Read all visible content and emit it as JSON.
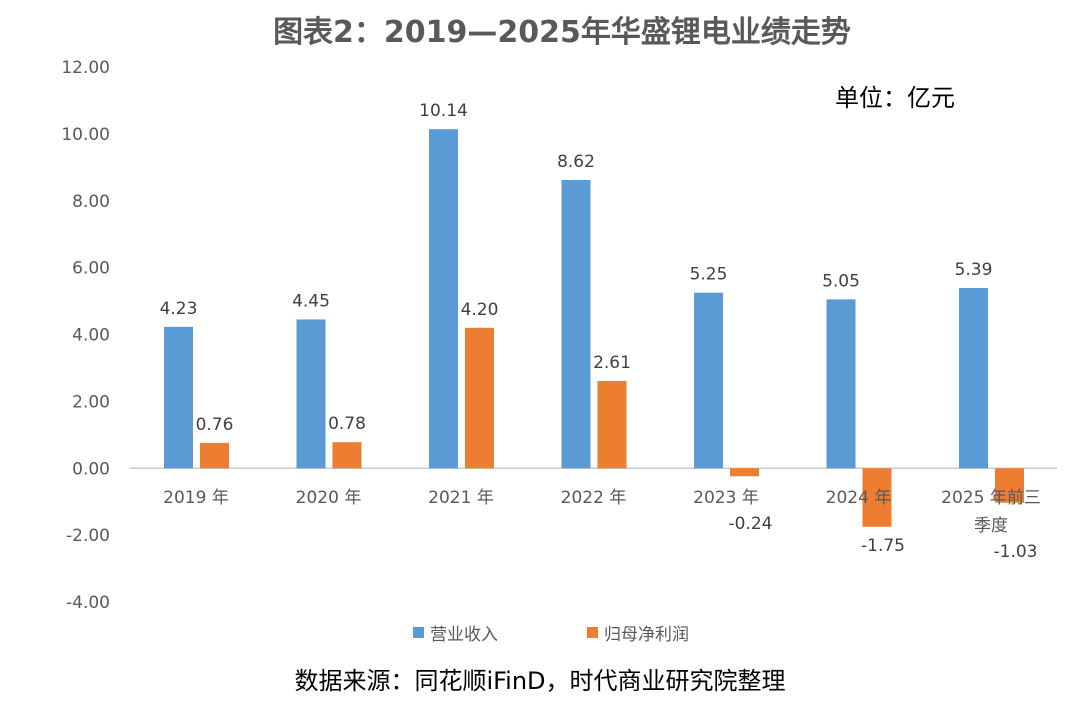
{
  "chart_data": {
    "type": "bar",
    "title": "图表2：2019—2025年华盛锂电业绩走势",
    "unit_label": "单位：亿元",
    "source": "数据来源：同花顺iFinD，时代商业研究院整理",
    "categories": [
      "2019 年",
      "2020 年",
      "2021 年",
      "2022 年",
      "2023 年",
      "2024 年",
      "2025 年前三季度"
    ],
    "category_lines": [
      [
        "2019 年"
      ],
      [
        "2020 年"
      ],
      [
        "2021 年"
      ],
      [
        "2022 年"
      ],
      [
        "2023 年"
      ],
      [
        "2024 年"
      ],
      [
        "2025 年前三",
        "季度"
      ]
    ],
    "series": [
      {
        "name": "营业收入",
        "color": "#5B9BD5",
        "values": [
          4.23,
          4.45,
          10.14,
          8.62,
          5.25,
          5.05,
          5.39
        ],
        "labels": [
          "4.23",
          "4.45",
          "10.14",
          "8.62",
          "5.25",
          "5.05",
          "5.39"
        ]
      },
      {
        "name": "归母净利润",
        "color": "#ED7D31",
        "values": [
          0.76,
          0.78,
          4.2,
          2.61,
          -0.24,
          -1.75,
          -1.03
        ],
        "labels": [
          "0.76",
          "0.78",
          "4.20",
          "2.61",
          "-0.24",
          "-1.75",
          "-1.03"
        ]
      }
    ],
    "ylim": [
      -4,
      12
    ],
    "yticks": [
      "-4.00",
      "-2.00",
      "0.00",
      "2.00",
      "4.00",
      "6.00",
      "8.00",
      "10.00",
      "12.00"
    ],
    "ytick_values": [
      -4,
      -2,
      0,
      2,
      4,
      6,
      8,
      10,
      12
    ],
    "grid": false,
    "legend_position": "bottom"
  }
}
